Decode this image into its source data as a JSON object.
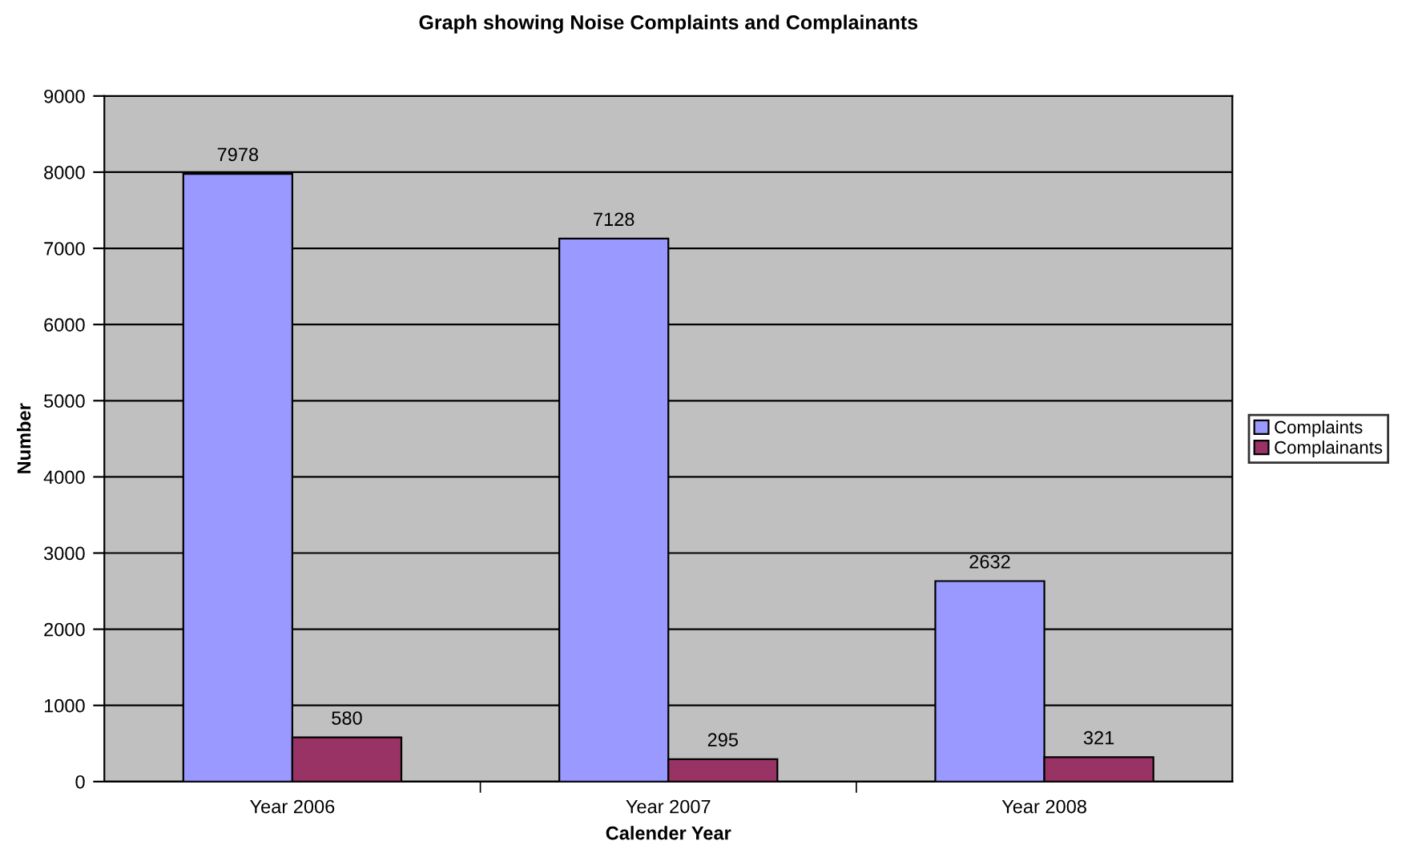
{
  "chart_data": {
    "type": "bar",
    "title": "Graph showing Noise Complaints and Complainants",
    "xlabel": "Calender Year",
    "ylabel": "Number",
    "categories": [
      "Year 2006",
      "Year 2007",
      "Year 2008"
    ],
    "series": [
      {
        "name": "Complaints",
        "color": "#9999ff",
        "values": [
          7978,
          7128,
          2632
        ]
      },
      {
        "name": "Complainants",
        "color": "#993366",
        "values": [
          580,
          295,
          321
        ]
      }
    ],
    "ylim": [
      0,
      9000
    ],
    "yticks": [
      0,
      1000,
      2000,
      3000,
      4000,
      5000,
      6000,
      7000,
      8000,
      9000
    ],
    "grid": "y",
    "legend": "right",
    "data_labels": true
  }
}
